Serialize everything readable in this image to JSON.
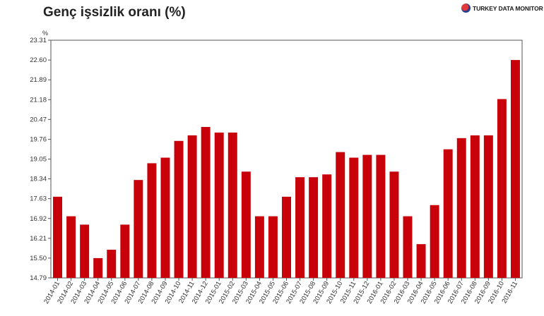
{
  "title": "Genç işsizlik oranı (%)",
  "brand": {
    "name": "TURKEY DATA MONITOR",
    "icon": "turkey-data-monitor-logo-icon"
  },
  "chart_data": {
    "type": "bar",
    "ylabel": "%",
    "ylim": [
      14.79,
      23.31
    ],
    "yticks": [
      "23.31",
      "22.60",
      "21.89",
      "21.18",
      "20.47",
      "19.76",
      "19.05",
      "18.34",
      "17.63",
      "16.92",
      "16.21",
      "15.50",
      "14.79"
    ],
    "grid": false,
    "bar_color": "#c8000a",
    "categories": [
      "2014-01",
      "2014-02",
      "2014-03",
      "2014-04",
      "2014-05",
      "2014-06",
      "2014-07",
      "2014-08",
      "2014-09",
      "2014-10",
      "2014-11",
      "2014-12",
      "2015-01",
      "2015-02",
      "2015-03",
      "2015-04",
      "2015-05",
      "2015-06",
      "2015-07",
      "2015-08",
      "2015-09",
      "2015-10",
      "2015-11",
      "2015-12",
      "2016-01",
      "2016-02",
      "2016-03",
      "2016-04",
      "2016-05",
      "2016-06",
      "2016-07",
      "2016-08",
      "2016-09",
      "2016-10",
      "2016-11"
    ],
    "values": [
      17.7,
      17.0,
      16.7,
      15.5,
      15.8,
      16.7,
      18.3,
      18.9,
      19.1,
      19.7,
      19.9,
      20.2,
      20.0,
      20.0,
      18.6,
      17.0,
      17.0,
      17.7,
      18.4,
      18.4,
      18.5,
      19.3,
      19.1,
      19.2,
      19.2,
      18.6,
      17.0,
      16.0,
      17.4,
      19.4,
      19.8,
      19.9,
      19.9,
      21.2,
      22.6
    ]
  }
}
